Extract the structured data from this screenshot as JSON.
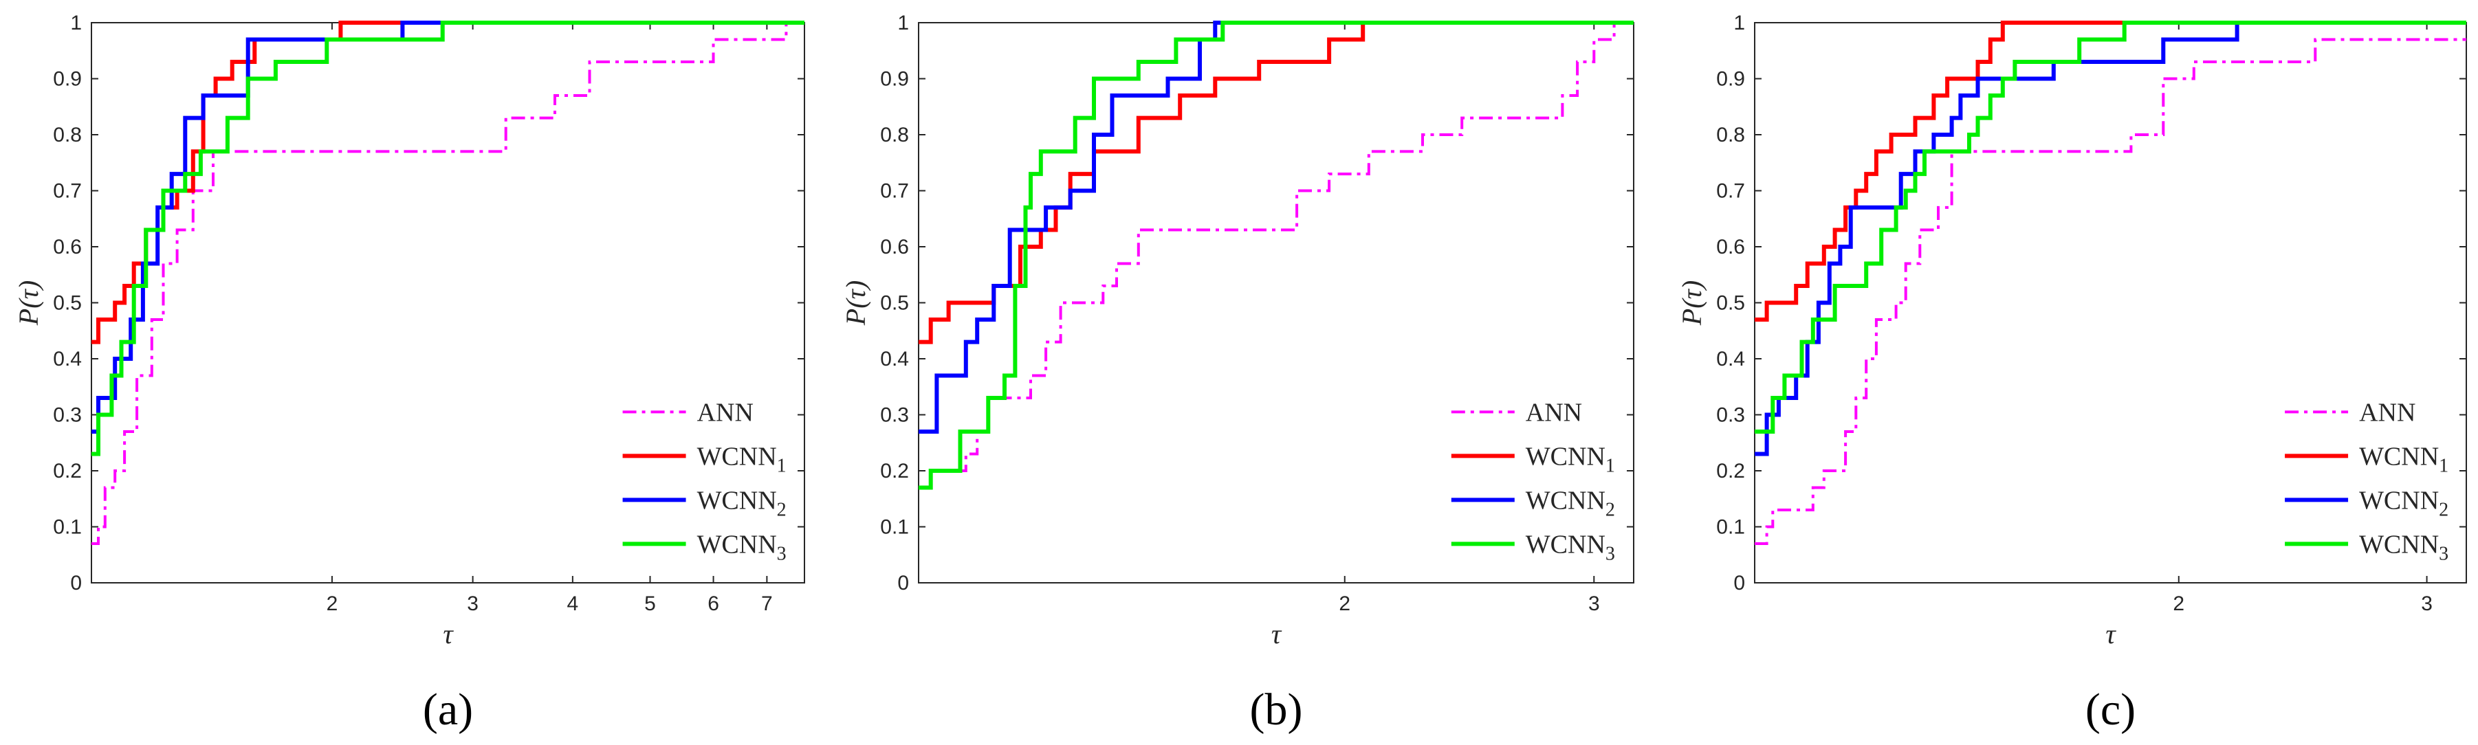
{
  "colors": {
    "ANN": "#ff00ff",
    "WCNN1": "#ff0000",
    "WCNN2": "#0000ff",
    "WCNN3": "#00ee00"
  },
  "chart_data": [
    {
      "type": "line",
      "caption": "(a)",
      "xlabel": "τ",
      "ylabel": "P(τ)",
      "xscale": "log2",
      "xlim": [
        1,
        7.8
      ],
      "ylim": [
        0,
        1
      ],
      "xticks": [
        2,
        3,
        4,
        5,
        6,
        7
      ],
      "yticks": [
        0,
        0.1,
        0.2,
        0.3,
        0.4,
        0.5,
        0.6,
        0.7,
        0.8,
        0.9,
        1
      ],
      "legend_position": "bottom-right",
      "series": [
        {
          "name": "ANN",
          "sub": "",
          "style": "dashdot",
          "points": [
            [
              1,
              0.07
            ],
            [
              1.02,
              0.1
            ],
            [
              1.04,
              0.17
            ],
            [
              1.07,
              0.2
            ],
            [
              1.1,
              0.27
            ],
            [
              1.14,
              0.37
            ],
            [
              1.19,
              0.47
            ],
            [
              1.23,
              0.57
            ],
            [
              1.28,
              0.63
            ],
            [
              1.34,
              0.7
            ],
            [
              1.42,
              0.77
            ],
            [
              3.2,
              0.77
            ],
            [
              3.3,
              0.83
            ],
            [
              3.8,
              0.87
            ],
            [
              4.2,
              0.93
            ],
            [
              5.2,
              0.93
            ],
            [
              6,
              0.97
            ],
            [
              7.2,
              0.97
            ],
            [
              7.4,
              1
            ]
          ]
        },
        {
          "name": "WCNN",
          "sub": "1",
          "style": "solid",
          "points": [
            [
              1,
              0.43
            ],
            [
              1.02,
              0.47
            ],
            [
              1.07,
              0.5
            ],
            [
              1.1,
              0.53
            ],
            [
              1.13,
              0.57
            ],
            [
              1.17,
              0.63
            ],
            [
              1.23,
              0.67
            ],
            [
              1.28,
              0.7
            ],
            [
              1.34,
              0.77
            ],
            [
              1.38,
              0.87
            ],
            [
              1.43,
              0.9
            ],
            [
              1.5,
              0.93
            ],
            [
              1.6,
              0.97
            ],
            [
              2.05,
              1
            ],
            [
              7.8,
              1
            ]
          ]
        },
        {
          "name": "WCNN",
          "sub": "2",
          "style": "solid",
          "points": [
            [
              1,
              0.27
            ],
            [
              1.02,
              0.33
            ],
            [
              1.07,
              0.4
            ],
            [
              1.12,
              0.47
            ],
            [
              1.16,
              0.57
            ],
            [
              1.21,
              0.67
            ],
            [
              1.26,
              0.73
            ],
            [
              1.31,
              0.83
            ],
            [
              1.38,
              0.87
            ],
            [
              1.57,
              0.97
            ],
            [
              2.45,
              1
            ],
            [
              7.8,
              1
            ]
          ]
        },
        {
          "name": "WCNN",
          "sub": "3",
          "style": "solid",
          "points": [
            [
              1,
              0.23
            ],
            [
              1.02,
              0.3
            ],
            [
              1.06,
              0.37
            ],
            [
              1.09,
              0.43
            ],
            [
              1.13,
              0.53
            ],
            [
              1.17,
              0.63
            ],
            [
              1.23,
              0.7
            ],
            [
              1.31,
              0.73
            ],
            [
              1.37,
              0.77
            ],
            [
              1.48,
              0.83
            ],
            [
              1.57,
              0.9
            ],
            [
              1.7,
              0.93
            ],
            [
              1.97,
              0.97
            ],
            [
              2.75,
              1
            ],
            [
              7.8,
              1
            ]
          ]
        }
      ]
    },
    {
      "type": "line",
      "caption": "(b)",
      "xlabel": "τ",
      "ylabel": "P(τ)",
      "xscale": "log2",
      "xlim": [
        1,
        3.2
      ],
      "ylim": [
        0,
        1
      ],
      "xticks": [
        2,
        3
      ],
      "yticks": [
        0,
        0.1,
        0.2,
        0.3,
        0.4,
        0.5,
        0.6,
        0.7,
        0.8,
        0.9,
        1
      ],
      "legend_position": "bottom-right",
      "series": [
        {
          "name": "ANN",
          "sub": "",
          "style": "dashdot",
          "points": [
            [
              1,
              0.17
            ],
            [
              1.02,
              0.2
            ],
            [
              1.08,
              0.23
            ],
            [
              1.1,
              0.27
            ],
            [
              1.12,
              0.33
            ],
            [
              1.2,
              0.37
            ],
            [
              1.23,
              0.43
            ],
            [
              1.26,
              0.5
            ],
            [
              1.35,
              0.53
            ],
            [
              1.38,
              0.57
            ],
            [
              1.43,
              0.63
            ],
            [
              1.85,
              0.7
            ],
            [
              1.95,
              0.73
            ],
            [
              2.08,
              0.77
            ],
            [
              2.27,
              0.8
            ],
            [
              2.42,
              0.83
            ],
            [
              2.85,
              0.87
            ],
            [
              2.92,
              0.93
            ],
            [
              3.0,
              0.97
            ],
            [
              3.1,
              1
            ]
          ]
        },
        {
          "name": "WCNN",
          "sub": "1",
          "style": "solid",
          "points": [
            [
              1,
              0.43
            ],
            [
              1.02,
              0.47
            ],
            [
              1.05,
              0.5
            ],
            [
              1.13,
              0.53
            ],
            [
              1.18,
              0.6
            ],
            [
              1.22,
              0.63
            ],
            [
              1.25,
              0.67
            ],
            [
              1.28,
              0.73
            ],
            [
              1.33,
              0.77
            ],
            [
              1.43,
              0.83
            ],
            [
              1.53,
              0.87
            ],
            [
              1.62,
              0.9
            ],
            [
              1.74,
              0.93
            ],
            [
              1.95,
              0.97
            ],
            [
              2.06,
              1
            ],
            [
              3.2,
              1
            ]
          ]
        },
        {
          "name": "WCNN",
          "sub": "2",
          "style": "solid",
          "points": [
            [
              1,
              0.27
            ],
            [
              1.03,
              0.37
            ],
            [
              1.08,
              0.43
            ],
            [
              1.1,
              0.47
            ],
            [
              1.13,
              0.53
            ],
            [
              1.16,
              0.63
            ],
            [
              1.23,
              0.67
            ],
            [
              1.28,
              0.7
            ],
            [
              1.33,
              0.8
            ],
            [
              1.37,
              0.87
            ],
            [
              1.5,
              0.9
            ],
            [
              1.58,
              0.97
            ],
            [
              1.62,
              1
            ],
            [
              3.2,
              1
            ]
          ]
        },
        {
          "name": "WCNN",
          "sub": "3",
          "style": "solid",
          "points": [
            [
              1,
              0.17
            ],
            [
              1.02,
              0.2
            ],
            [
              1.07,
              0.27
            ],
            [
              1.12,
              0.33
            ],
            [
              1.15,
              0.37
            ],
            [
              1.17,
              0.53
            ],
            [
              1.19,
              0.67
            ],
            [
              1.2,
              0.73
            ],
            [
              1.22,
              0.77
            ],
            [
              1.29,
              0.83
            ],
            [
              1.33,
              0.9
            ],
            [
              1.43,
              0.93
            ],
            [
              1.52,
              0.97
            ],
            [
              1.64,
              1
            ],
            [
              3.2,
              1
            ]
          ]
        }
      ]
    },
    {
      "type": "line",
      "caption": "(c)",
      "xlabel": "τ",
      "ylabel": "P(τ)",
      "xscale": "log2",
      "xlim": [
        1,
        3.2
      ],
      "ylim": [
        0,
        1
      ],
      "xticks": [
        2,
        3
      ],
      "yticks": [
        0,
        0.1,
        0.2,
        0.3,
        0.4,
        0.5,
        0.6,
        0.7,
        0.8,
        0.9,
        1
      ],
      "legend_position": "bottom-right",
      "series": [
        {
          "name": "ANN",
          "sub": "",
          "style": "dashdot",
          "points": [
            [
              1,
              0.07
            ],
            [
              1.02,
              0.1
            ],
            [
              1.03,
              0.13
            ],
            [
              1.1,
              0.17
            ],
            [
              1.12,
              0.2
            ],
            [
              1.16,
              0.27
            ],
            [
              1.18,
              0.33
            ],
            [
              1.2,
              0.4
            ],
            [
              1.22,
              0.47
            ],
            [
              1.26,
              0.5
            ],
            [
              1.28,
              0.57
            ],
            [
              1.31,
              0.63
            ],
            [
              1.35,
              0.67
            ],
            [
              1.38,
              0.77
            ],
            [
              1.85,
              0.8
            ],
            [
              1.95,
              0.9
            ],
            [
              2.05,
              0.93
            ],
            [
              2.5,
              0.97
            ],
            [
              3.2,
              0.97
            ]
          ]
        },
        {
          "name": "WCNN",
          "sub": "1",
          "style": "solid",
          "points": [
            [
              1,
              0.47
            ],
            [
              1.02,
              0.5
            ],
            [
              1.07,
              0.53
            ],
            [
              1.09,
              0.57
            ],
            [
              1.12,
              0.6
            ],
            [
              1.14,
              0.63
            ],
            [
              1.16,
              0.67
            ],
            [
              1.18,
              0.7
            ],
            [
              1.2,
              0.73
            ],
            [
              1.22,
              0.77
            ],
            [
              1.25,
              0.8
            ],
            [
              1.3,
              0.83
            ],
            [
              1.34,
              0.87
            ],
            [
              1.37,
              0.9
            ],
            [
              1.44,
              0.93
            ],
            [
              1.47,
              0.97
            ],
            [
              1.5,
              1
            ],
            [
              3.2,
              1
            ]
          ]
        },
        {
          "name": "WCNN",
          "sub": "2",
          "style": "solid",
          "points": [
            [
              1,
              0.23
            ],
            [
              1.02,
              0.3
            ],
            [
              1.04,
              0.33
            ],
            [
              1.07,
              0.37
            ],
            [
              1.09,
              0.43
            ],
            [
              1.11,
              0.5
            ],
            [
              1.13,
              0.57
            ],
            [
              1.15,
              0.6
            ],
            [
              1.17,
              0.67
            ],
            [
              1.27,
              0.73
            ],
            [
              1.3,
              0.77
            ],
            [
              1.34,
              0.8
            ],
            [
              1.38,
              0.83
            ],
            [
              1.4,
              0.87
            ],
            [
              1.44,
              0.9
            ],
            [
              1.63,
              0.93
            ],
            [
              1.95,
              0.97
            ],
            [
              2.2,
              1
            ],
            [
              3.2,
              1
            ]
          ]
        },
        {
          "name": "WCNN",
          "sub": "3",
          "style": "solid",
          "points": [
            [
              1,
              0.27
            ],
            [
              1.03,
              0.33
            ],
            [
              1.05,
              0.37
            ],
            [
              1.08,
              0.43
            ],
            [
              1.1,
              0.47
            ],
            [
              1.14,
              0.53
            ],
            [
              1.2,
              0.57
            ],
            [
              1.23,
              0.63
            ],
            [
              1.26,
              0.67
            ],
            [
              1.28,
              0.7
            ],
            [
              1.3,
              0.73
            ],
            [
              1.32,
              0.77
            ],
            [
              1.42,
              0.8
            ],
            [
              1.44,
              0.83
            ],
            [
              1.47,
              0.87
            ],
            [
              1.5,
              0.9
            ],
            [
              1.53,
              0.93
            ],
            [
              1.7,
              0.97
            ],
            [
              1.83,
              1
            ],
            [
              3.2,
              1
            ]
          ]
        }
      ]
    }
  ]
}
